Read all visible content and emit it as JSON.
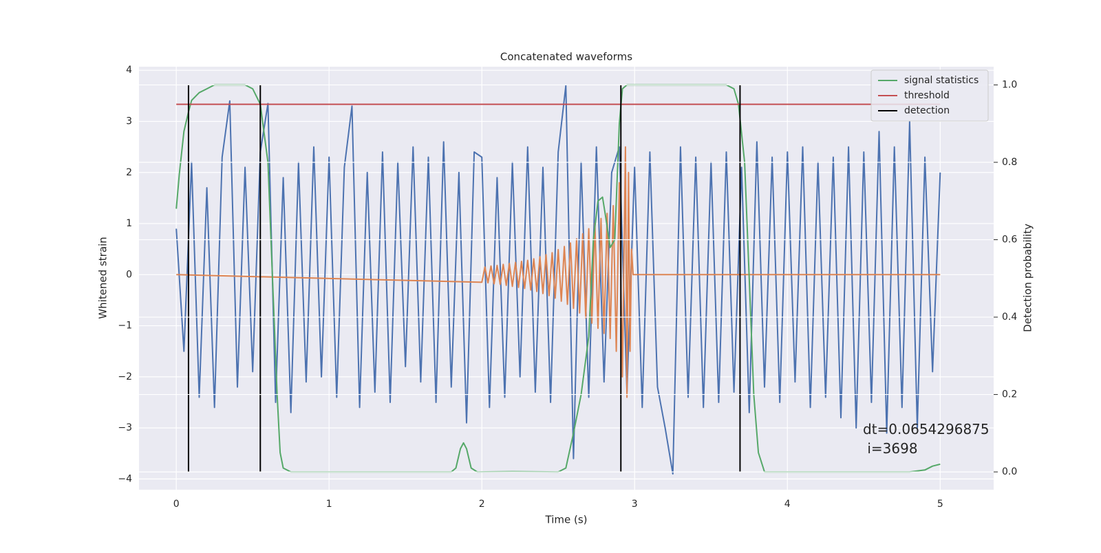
{
  "chart_data": {
    "type": "line",
    "title": "Concatenated waveforms",
    "xlabel": "Time (s)",
    "ylabel": "Whitened strain",
    "y2label": "Detection probability",
    "xlim": [
      -0.244,
      5.35
    ],
    "ylim": [
      -4.21,
      4.07
    ],
    "y2lim": [
      -0.046,
      1.047
    ],
    "xticks": [
      0,
      1,
      2,
      3,
      4,
      5
    ],
    "yticks": [
      {
        "value": -4,
        "label": "−4"
      },
      {
        "value": -3,
        "label": "−3"
      },
      {
        "value": -2,
        "label": "−2"
      },
      {
        "value": -1,
        "label": "−1"
      },
      0,
      1,
      2,
      3,
      4
    ],
    "y2ticks": [
      {
        "value": 0,
        "label": "0.0"
      },
      0.2,
      0.4,
      0.6,
      0.8,
      {
        "value": 1,
        "label": "1.0"
      }
    ],
    "grid": true,
    "legend": "upper right",
    "annotation": "dt=0.0654296875\n i=3698",
    "series": [
      {
        "color": "#4c72b0",
        "axis": "y",
        "x": [
          0,
          0.05,
          0.1,
          0.15,
          0.2,
          0.25,
          0.3,
          0.35,
          0.4,
          0.45,
          0.5,
          0.55,
          0.6,
          0.65,
          0.7,
          0.75,
          0.8,
          0.85,
          0.9,
          0.95,
          1,
          1.05,
          1.1,
          1.15,
          1.2,
          1.25,
          1.3,
          1.35,
          1.4,
          1.45,
          1.5,
          1.55,
          1.6,
          1.65,
          1.7,
          1.75,
          1.8,
          1.85,
          1.9,
          1.95,
          2,
          2.05,
          2.1,
          2.15,
          2.2,
          2.25,
          2.3,
          2.35,
          2.4,
          2.45,
          2.5,
          2.55,
          2.6,
          2.65,
          2.7,
          2.75,
          2.8,
          2.85,
          2.9,
          2.95,
          3,
          3.05,
          3.1,
          3.15,
          3.2,
          3.25,
          3.3,
          3.35,
          3.4,
          3.45,
          3.5,
          3.55,
          3.6,
          3.65,
          3.7,
          3.75,
          3.8,
          3.85,
          3.9,
          3.95,
          4,
          4.05,
          4.1,
          4.15,
          4.2,
          4.25,
          4.3,
          4.35,
          4.4,
          4.45,
          4.5,
          4.55,
          4.6,
          4.65,
          4.7,
          4.75,
          4.8,
          4.85,
          4.9,
          4.95,
          5
        ],
        "values": [
          0.9,
          -1.5,
          2.2,
          -2.4,
          1.7,
          -2.6,
          2.3,
          3.4,
          -2.2,
          2.1,
          -1.9,
          2.4,
          3.35,
          -2.5,
          1.9,
          -2.7,
          2.2,
          -2.1,
          2.5,
          -2.0,
          2.3,
          -2.4,
          2.1,
          3.3,
          -2.6,
          2.0,
          -2.3,
          2.4,
          -2.5,
          2.2,
          -1.8,
          2.5,
          -2.1,
          2.3,
          -2.5,
          2.6,
          -2.2,
          2.0,
          -2.9,
          2.4,
          2.3,
          -2.6,
          1.9,
          -2.4,
          2.2,
          -2.0,
          2.5,
          -2.3,
          2.1,
          -2.5,
          2.4,
          3.7,
          -3.6,
          2.2,
          -2.4,
          2.5,
          -2.1,
          2.0,
          2.5,
          -2.3,
          2.1,
          -2.6,
          2.4,
          -2.2,
          -3.0,
          -3.9,
          2.5,
          -2.4,
          2.3,
          -2.6,
          2.2,
          -2.5,
          2.4,
          -2.3,
          2.1,
          -2.7,
          2.6,
          -2.2,
          2.3,
          -2.5,
          2.4,
          -2.1,
          2.5,
          -2.6,
          2.2,
          -2.4,
          2.3,
          -2.8,
          2.5,
          -3.0,
          2.4,
          -2.5,
          2.8,
          -3.1,
          2.5,
          -2.6,
          3.0,
          -3.0,
          2.3,
          -1.9,
          2.0
        ]
      },
      {
        "color": "#dd8452",
        "axis": "y",
        "x": [
          0,
          2.0,
          2.02,
          2.04,
          2.06,
          2.08,
          2.1,
          2.12,
          2.14,
          2.16,
          2.18,
          2.2,
          2.22,
          2.24,
          2.26,
          2.28,
          2.3,
          2.32,
          2.34,
          2.36,
          2.38,
          2.4,
          2.42,
          2.44,
          2.46,
          2.48,
          2.5,
          2.52,
          2.54,
          2.56,
          2.58,
          2.6,
          2.62,
          2.64,
          2.66,
          2.68,
          2.7,
          2.72,
          2.74,
          2.76,
          2.78,
          2.8,
          2.82,
          2.84,
          2.86,
          2.88,
          2.9,
          2.92,
          2.94,
          2.95,
          2.96,
          2.97,
          2.98,
          2.99,
          5
        ],
        "values": [
          0,
          -0.15,
          0.15,
          -0.16,
          0.17,
          -0.18,
          0.18,
          -0.19,
          0.2,
          -0.21,
          0.22,
          -0.23,
          0.24,
          -0.25,
          0.26,
          -0.27,
          0.28,
          -0.3,
          0.31,
          -0.33,
          0.35,
          -0.37,
          0.39,
          -0.41,
          0.43,
          -0.46,
          0.49,
          -0.52,
          0.55,
          -0.58,
          0.62,
          -0.66,
          0.7,
          -0.75,
          0.8,
          -0.85,
          0.9,
          -0.95,
          1.0,
          -1.05,
          1.1,
          -1.15,
          1.2,
          -1.25,
          1.35,
          -1.5,
          1.8,
          -2.0,
          2.5,
          -2.4,
          2.0,
          -1.5,
          0.5,
          0,
          0
        ]
      },
      {
        "name": "signal statistics",
        "color": "#55a868",
        "axis": "y2",
        "x": [
          0,
          0.02,
          0.05,
          0.08,
          0.1,
          0.15,
          0.2,
          0.25,
          0.45,
          0.5,
          0.55,
          0.6,
          0.63,
          0.66,
          0.68,
          0.7,
          0.75,
          1.8,
          1.83,
          1.86,
          1.88,
          1.9,
          1.93,
          1.97,
          2.2,
          2.5,
          2.55,
          2.6,
          2.65,
          2.7,
          2.73,
          2.76,
          2.79,
          2.81,
          2.84,
          2.87,
          2.9,
          2.92,
          2.95,
          3.6,
          3.65,
          3.68,
          3.72,
          3.75,
          3.78,
          3.81,
          3.85,
          4.8,
          4.9,
          4.95,
          5
        ],
        "values": [
          0.68,
          0.77,
          0.88,
          0.93,
          0.96,
          0.98,
          0.99,
          1.0,
          1.0,
          0.99,
          0.95,
          0.8,
          0.5,
          0.2,
          0.05,
          0.01,
          0.0,
          0.0,
          0.01,
          0.06,
          0.075,
          0.06,
          0.01,
          0.0,
          0.001,
          0.0,
          0.01,
          0.1,
          0.2,
          0.35,
          0.6,
          0.7,
          0.71,
          0.66,
          0.58,
          0.6,
          0.9,
          0.99,
          1.0,
          1.0,
          0.99,
          0.95,
          0.8,
          0.5,
          0.2,
          0.05,
          0.0,
          0.0,
          0.005,
          0.015,
          0.02
        ]
      },
      {
        "name": "threshold",
        "color": "#c44e52",
        "axis": "y2",
        "x": [
          0,
          5
        ],
        "values": [
          0.95,
          0.95
        ]
      },
      {
        "name": "detection",
        "color": "#000000",
        "axis": "y2",
        "vlines": [
          0.08,
          0.55,
          2.91,
          3.69
        ],
        "span": [
          0,
          1
        ]
      }
    ]
  }
}
